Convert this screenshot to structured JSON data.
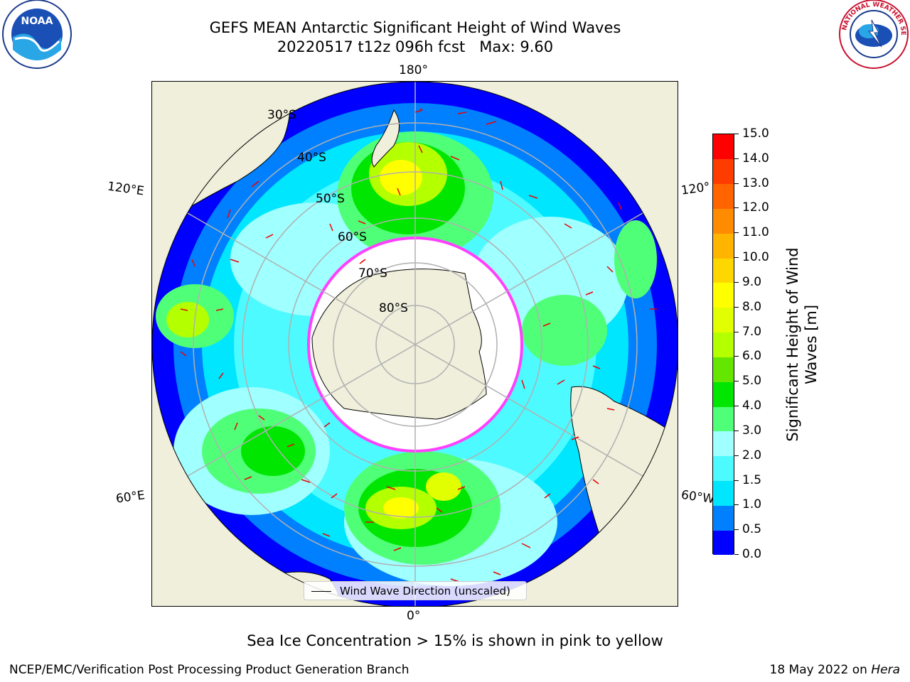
{
  "header": {
    "title_line1": "GEFS MEAN Antarctic Significant Height of Wind Waves",
    "title_line2": "20220517 t12z 096h fcst   Max: 9.60"
  },
  "logos": {
    "left": "NOAA",
    "right": "NATIONAL WEATHER SERVICE"
  },
  "map": {
    "longitude_labels": {
      "top": "180°",
      "bottom": "0°",
      "upper_left": "120°E",
      "lower_left": "60°E",
      "upper_right": "120°",
      "lower_right": "60°W"
    },
    "latitude_labels": [
      "30°S",
      "40°S",
      "50°S",
      "60°S",
      "70°S",
      "80°S"
    ],
    "legend_label": "Wind Wave Direction (unscaled)"
  },
  "colorbar": {
    "title_line1": "Significant Height of Wind",
    "title_line2": "Waves [m]",
    "ticks": [
      "0.0",
      "0.5",
      "1.0",
      "1.5",
      "2.0",
      "3.0",
      "4.0",
      "5.0",
      "6.0",
      "7.0",
      "8.0",
      "9.0",
      "10.0",
      "11.0",
      "12.0",
      "13.0",
      "14.0",
      "15.0"
    ],
    "colors": [
      "#0000ff",
      "#0080ff",
      "#00e6ff",
      "#4dfaff",
      "#a0ffff",
      "#50ff78",
      "#00e600",
      "#64e600",
      "#b4ff00",
      "#e1ff00",
      "#ffff00",
      "#ffd700",
      "#ffb400",
      "#ff8c00",
      "#ff6400",
      "#ff3c00",
      "#ff0000"
    ]
  },
  "note": "Sea Ice Concentration > 15% is shown in pink to yellow",
  "footer": {
    "left": "NCEP/EMC/Verification Post Processing Product Generation Branch",
    "right_prefix": "18 May 2022 on ",
    "right_host": "Hera"
  }
}
